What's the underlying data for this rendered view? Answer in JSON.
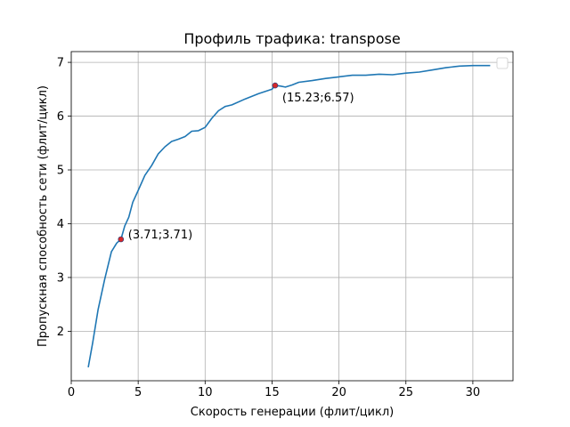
{
  "chart_data": {
    "type": "line",
    "title": "Профиль трафика: transpose",
    "xlabel": "Скорость генерации (флит/цикл)",
    "ylabel": "Пропускная способность сети (флит/цикл)",
    "xlim": [
      0.0,
      33.0
    ],
    "ylim": [
      1.08,
      7.2
    ],
    "x_ticks": [
      0,
      5,
      10,
      15,
      20,
      25,
      30
    ],
    "y_ticks": [
      2,
      3,
      4,
      5,
      6,
      7
    ],
    "grid": true,
    "legend": "top-right, empty",
    "series": [
      {
        "color": "#1f77b4",
        "x": [
          1.27,
          1.6,
          2.0,
          2.5,
          3.0,
          3.4,
          3.71,
          4.0,
          4.3,
          4.6,
          5.0,
          5.5,
          6.0,
          6.5,
          7.0,
          7.5,
          8.0,
          8.5,
          9.0,
          9.5,
          10.0,
          10.5,
          11.0,
          11.5,
          12.0,
          13.0,
          14.0,
          15.0,
          15.23,
          15.6,
          16.0,
          16.5,
          17.0,
          18.0,
          19.0,
          20.0,
          21.0,
          22.0,
          23.0,
          24.0,
          25.0,
          26.0,
          27.0,
          28.0,
          29.0,
          30.0,
          31.0,
          31.3
        ],
        "y": [
          1.33,
          1.78,
          2.4,
          2.97,
          3.48,
          3.64,
          3.71,
          3.96,
          4.12,
          4.4,
          4.62,
          4.9,
          5.08,
          5.3,
          5.43,
          5.53,
          5.57,
          5.62,
          5.72,
          5.73,
          5.79,
          5.96,
          6.1,
          6.18,
          6.21,
          6.32,
          6.42,
          6.5,
          6.57,
          6.56,
          6.54,
          6.58,
          6.63,
          6.66,
          6.7,
          6.73,
          6.76,
          6.76,
          6.78,
          6.77,
          6.8,
          6.82,
          6.86,
          6.9,
          6.93,
          6.94,
          6.94,
          6.94
        ]
      }
    ],
    "annotations": [
      {
        "x": 3.71,
        "y": 3.71,
        "label": "(3.71;3.71)",
        "color": "#d62728"
      },
      {
        "x": 15.23,
        "y": 6.57,
        "label": "(15.23;6.57)",
        "color": "#d62728"
      }
    ]
  }
}
